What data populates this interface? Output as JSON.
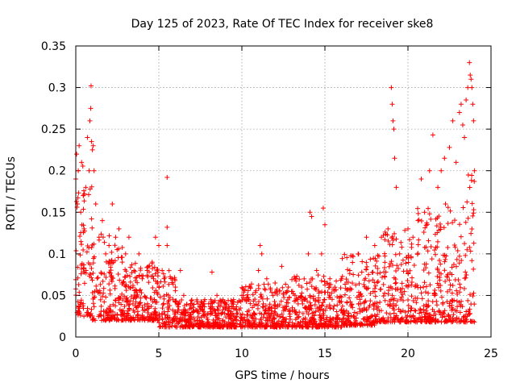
{
  "chart_data": {
    "type": "scatter",
    "title": "Day 125 of 2023, Rate Of TEC Index for receiver ske8",
    "xlabel": "GPS time / hours",
    "ylabel": "ROTI / TECUs",
    "xlim": [
      0,
      25
    ],
    "ylim": [
      0,
      0.35
    ],
    "xticks": [
      "0",
      "5",
      "10",
      "15",
      "20",
      "25"
    ],
    "yticks": [
      "0",
      "0.05",
      "0.1",
      "0.15",
      "0.2",
      "0.25",
      "0.3",
      "0.35"
    ],
    "xtick_values": [
      0,
      5,
      10,
      15,
      20,
      25
    ],
    "ytick_values": [
      0,
      0.05,
      0.1,
      0.15,
      0.2,
      0.25,
      0.3,
      0.35
    ],
    "grid": true,
    "marker": "+",
    "color": "#ff0000",
    "series": [
      {
        "values": [
          [
            0.0,
            0.19
          ],
          [
            0.05,
            0.22
          ],
          [
            0.1,
            0.16
          ],
          [
            0.15,
            0.2
          ],
          [
            0.2,
            0.23
          ],
          [
            0.3,
            0.15
          ],
          [
            0.35,
            0.21
          ],
          [
            0.45,
            0.17
          ],
          [
            0.5,
            0.13
          ],
          [
            0.6,
            0.18
          ],
          [
            0.7,
            0.24
          ],
          [
            0.8,
            0.2
          ],
          [
            0.85,
            0.26
          ],
          [
            0.9,
            0.275
          ],
          [
            0.92,
            0.302
          ],
          [
            0.95,
            0.235
          ],
          [
            1.0,
            0.225
          ],
          [
            1.05,
            0.23
          ],
          [
            1.1,
            0.2
          ],
          [
            1.2,
            0.16
          ],
          [
            1.4,
            0.12
          ],
          [
            1.6,
            0.14
          ],
          [
            1.8,
            0.1
          ],
          [
            2.0,
            0.11
          ],
          [
            2.2,
            0.16
          ],
          [
            2.4,
            0.12
          ],
          [
            2.6,
            0.13
          ],
          [
            2.8,
            0.09
          ],
          [
            3.0,
            0.1
          ],
          [
            3.2,
            0.12
          ],
          [
            3.5,
            0.08
          ],
          [
            3.8,
            0.1
          ],
          [
            4.0,
            0.07
          ],
          [
            4.3,
            0.08
          ],
          [
            4.6,
            0.09
          ],
          [
            4.8,
            0.12
          ],
          [
            5.0,
            0.11
          ],
          [
            5.2,
            0.08
          ],
          [
            5.5,
            0.192
          ],
          [
            5.5,
            0.132
          ],
          [
            5.5,
            0.11
          ],
          [
            5.8,
            0.07
          ],
          [
            6.0,
            0.06
          ],
          [
            6.3,
            0.08
          ],
          [
            6.5,
            0.05
          ],
          [
            7.0,
            0.04
          ],
          [
            7.5,
            0.035
          ],
          [
            8.0,
            0.04
          ],
          [
            8.2,
            0.078
          ],
          [
            8.5,
            0.05
          ],
          [
            9.0,
            0.04
          ],
          [
            9.5,
            0.045
          ],
          [
            10.0,
            0.05
          ],
          [
            10.5,
            0.06
          ],
          [
            11.0,
            0.08
          ],
          [
            11.1,
            0.11
          ],
          [
            11.2,
            0.1
          ],
          [
            11.5,
            0.07
          ],
          [
            12.0,
            0.065
          ],
          [
            12.4,
            0.085
          ],
          [
            12.8,
            0.06
          ],
          [
            13.2,
            0.07
          ],
          [
            13.6,
            0.06
          ],
          [
            14.0,
            0.1
          ],
          [
            14.1,
            0.15
          ],
          [
            14.2,
            0.145
          ],
          [
            14.5,
            0.08
          ],
          [
            14.8,
            0.1
          ],
          [
            14.9,
            0.155
          ],
          [
            15.0,
            0.135
          ],
          [
            15.3,
            0.07
          ],
          [
            15.6,
            0.06
          ],
          [
            16.0,
            0.07
          ],
          [
            16.5,
            0.08
          ],
          [
            17.0,
            0.1
          ],
          [
            17.5,
            0.12
          ],
          [
            18.0,
            0.11
          ],
          [
            18.4,
            0.12
          ],
          [
            18.8,
            0.13
          ],
          [
            19.0,
            0.3
          ],
          [
            19.05,
            0.28
          ],
          [
            19.1,
            0.26
          ],
          [
            19.15,
            0.25
          ],
          [
            19.2,
            0.215
          ],
          [
            19.3,
            0.18
          ],
          [
            19.5,
            0.1
          ],
          [
            20.0,
            0.13
          ],
          [
            20.3,
            0.12
          ],
          [
            20.6,
            0.14
          ],
          [
            20.8,
            0.19
          ],
          [
            21.0,
            0.15
          ],
          [
            21.3,
            0.2
          ],
          [
            21.5,
            0.243
          ],
          [
            21.8,
            0.18
          ],
          [
            22.0,
            0.2
          ],
          [
            22.2,
            0.215
          ],
          [
            22.5,
            0.228
          ],
          [
            22.7,
            0.26
          ],
          [
            22.9,
            0.21
          ],
          [
            23.1,
            0.27
          ],
          [
            23.2,
            0.28
          ],
          [
            23.3,
            0.255
          ],
          [
            23.4,
            0.24
          ],
          [
            23.5,
            0.285
          ],
          [
            23.6,
            0.3
          ],
          [
            23.7,
            0.33
          ],
          [
            23.75,
            0.315
          ],
          [
            23.8,
            0.31
          ],
          [
            23.85,
            0.3
          ],
          [
            23.9,
            0.28
          ],
          [
            23.95,
            0.26
          ],
          [
            24.0,
            0.2
          ]
        ]
      }
    ]
  }
}
